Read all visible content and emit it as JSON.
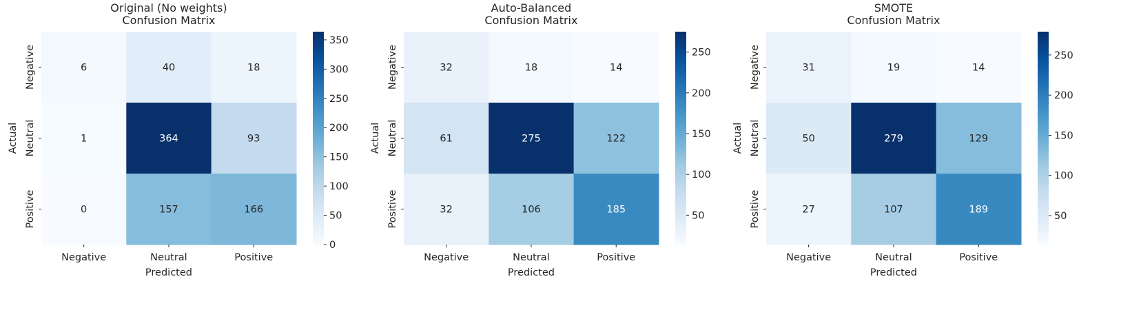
{
  "chart_data": [
    {
      "type": "heatmap",
      "title": "Original (No weights)",
      "subtitle": "Confusion Matrix",
      "xlabel": "Predicted",
      "ylabel": "Actual",
      "x_categories": [
        "Negative",
        "Neutral",
        "Positive"
      ],
      "y_categories": [
        "Negative",
        "Neutral",
        "Positive"
      ],
      "values": [
        [
          6,
          40,
          18
        ],
        [
          1,
          364,
          93
        ],
        [
          0,
          157,
          166
        ]
      ],
      "colorscale": "Blues",
      "vmin": 0,
      "vmax": 364,
      "colorbar_ticks": [
        0,
        50,
        100,
        150,
        200,
        250,
        300,
        350
      ]
    },
    {
      "type": "heatmap",
      "title": "Auto-Balanced",
      "subtitle": "Confusion Matrix",
      "xlabel": "Predicted",
      "ylabel": "Actual",
      "x_categories": [
        "Negative",
        "Neutral",
        "Positive"
      ],
      "y_categories": [
        "Negative",
        "Neutral",
        "Positive"
      ],
      "values": [
        [
          32,
          18,
          14
        ],
        [
          61,
          275,
          122
        ],
        [
          32,
          106,
          185
        ]
      ],
      "colorscale": "Blues",
      "vmin": 14,
      "vmax": 275,
      "colorbar_ticks": [
        50,
        100,
        150,
        200,
        250
      ]
    },
    {
      "type": "heatmap",
      "title": "SMOTE",
      "subtitle": "Confusion Matrix",
      "xlabel": "Predicted",
      "ylabel": "Actual",
      "x_categories": [
        "Negative",
        "Neutral",
        "Positive"
      ],
      "y_categories": [
        "Negative",
        "Neutral",
        "Positive"
      ],
      "values": [
        [
          31,
          19,
          14
        ],
        [
          50,
          279,
          129
        ],
        [
          27,
          107,
          189
        ]
      ],
      "colorscale": "Blues",
      "vmin": 14,
      "vmax": 279,
      "colorbar_ticks": [
        50,
        100,
        150,
        200,
        250
      ]
    }
  ]
}
